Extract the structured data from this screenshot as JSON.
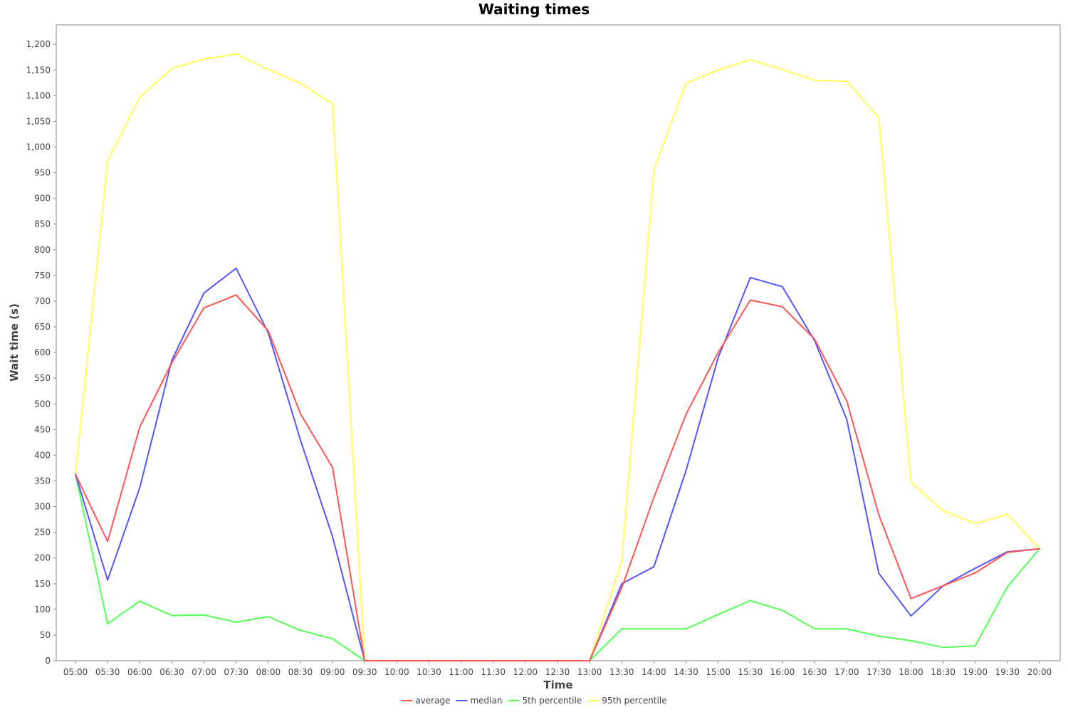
{
  "chart_data": {
    "type": "line",
    "title": "Waiting times",
    "xlabel": "Time",
    "ylabel": "Wait time (s)",
    "ylim": [
      0,
      1240
    ],
    "ytick_step": 50,
    "grid": false,
    "legend_position": "bottom",
    "background": "#ffffff",
    "categories": [
      "05:00",
      "05:30",
      "06:00",
      "06:30",
      "07:00",
      "07:30",
      "08:00",
      "08:30",
      "09:00",
      "09:30",
      "10:00",
      "10:30",
      "11:00",
      "11:30",
      "12:00",
      "12:30",
      "13:00",
      "13:30",
      "14:00",
      "14:30",
      "15:00",
      "15:30",
      "16:00",
      "16:30",
      "17:00",
      "17:30",
      "18:00",
      "18:30",
      "19:00",
      "19:30",
      "20:00"
    ],
    "series": [
      {
        "name": "average",
        "color": "#ff5555",
        "values": [
          363,
          232,
          455,
          580,
          687,
          712,
          642,
          481,
          376,
          0,
          0,
          0,
          0,
          0,
          0,
          0,
          0,
          142,
          318,
          480,
          600,
          702,
          689,
          626,
          506,
          284,
          121,
          146,
          171,
          211,
          218
        ]
      },
      {
        "name": "median",
        "color": "#5555ff",
        "values": [
          363,
          157,
          337,
          585,
          716,
          764,
          638,
          430,
          241,
          0,
          0,
          0,
          0,
          0,
          0,
          0,
          0,
          150,
          183,
          370,
          590,
          746,
          728,
          623,
          470,
          170,
          87,
          146,
          180,
          212,
          218
        ]
      },
      {
        "name": "5th percentile",
        "color": "#55ff55",
        "values": [
          363,
          72,
          116,
          88,
          89,
          75,
          86,
          59,
          43,
          0,
          0,
          0,
          0,
          0,
          0,
          0,
          0,
          62,
          62,
          62,
          90,
          117,
          98,
          62,
          62,
          48,
          39,
          26,
          29,
          144,
          218
        ]
      },
      {
        "name": "95th percentile",
        "color": "#ffff55",
        "values": [
          363,
          973,
          1097,
          1153,
          1171,
          1181,
          1151,
          1124,
          1084,
          0,
          0,
          0,
          0,
          0,
          0,
          0,
          0,
          195,
          956,
          1124,
          1150,
          1170,
          1151,
          1130,
          1128,
          1057,
          347,
          292,
          267,
          285,
          218
        ]
      }
    ]
  }
}
